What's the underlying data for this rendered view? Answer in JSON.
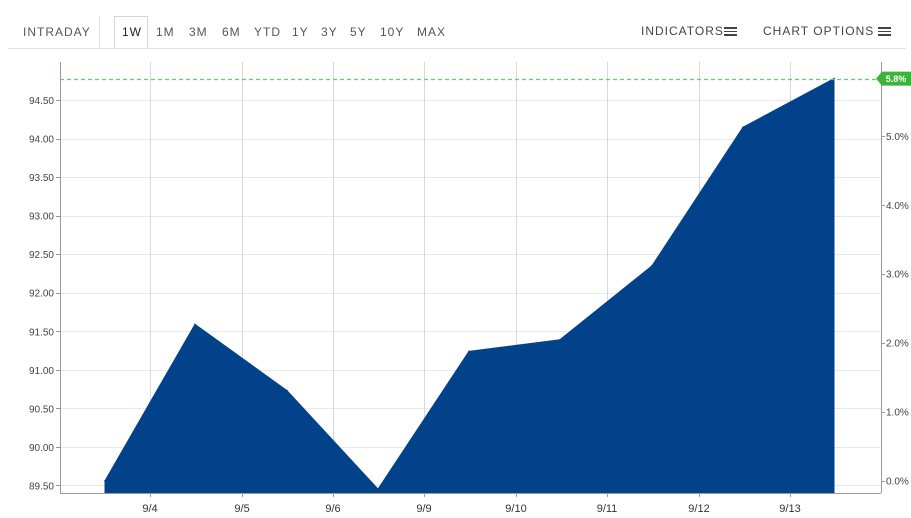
{
  "toolbar": {
    "ranges": [
      "INTRADAY",
      "1W",
      "1M",
      "3M",
      "6M",
      "YTD",
      "1Y",
      "3Y",
      "5Y",
      "10Y",
      "MAX"
    ],
    "active_range": "1W",
    "indicators_label": "INDICATORS",
    "chart_options_label": "CHART OPTIONS"
  },
  "colors": {
    "area_fill": "#02428b",
    "grid": "#e8e8e8",
    "reference_line": "#66cc66",
    "badge": "#3ab53a"
  },
  "chart_data": {
    "type": "area",
    "x": [
      "9/4",
      "9/4",
      "9/5",
      "9/6",
      "9/9",
      "9/10",
      "9/11",
      "9/12",
      "9/13"
    ],
    "categories": [
      "9/4",
      "9/5",
      "9/6",
      "9/9",
      "9/10",
      "9/11",
      "9/12",
      "9/13"
    ],
    "values": [
      89.56,
      91.59,
      90.73,
      89.45,
      91.24,
      91.39,
      92.35,
      94.15,
      94.78
    ],
    "left_axis": {
      "ticks": [
        "89.50",
        "90.00",
        "90.50",
        "91.00",
        "91.50",
        "92.00",
        "92.50",
        "93.00",
        "93.50",
        "94.00",
        "94.50"
      ],
      "tick_values": [
        89.5,
        90.0,
        90.5,
        91.0,
        91.5,
        92.0,
        92.5,
        93.0,
        93.5,
        94.0,
        94.5
      ],
      "ylim": [
        89.4,
        94.97
      ]
    },
    "right_axis": {
      "ticks": [
        "0.0%",
        "1.0%",
        "2.0%",
        "3.0%",
        "4.0%",
        "5.0%"
      ],
      "tick_values": [
        0,
        1,
        2,
        3,
        4,
        5
      ]
    },
    "current_change": 5.8,
    "current_change_label": "5.8%",
    "grid": true
  }
}
